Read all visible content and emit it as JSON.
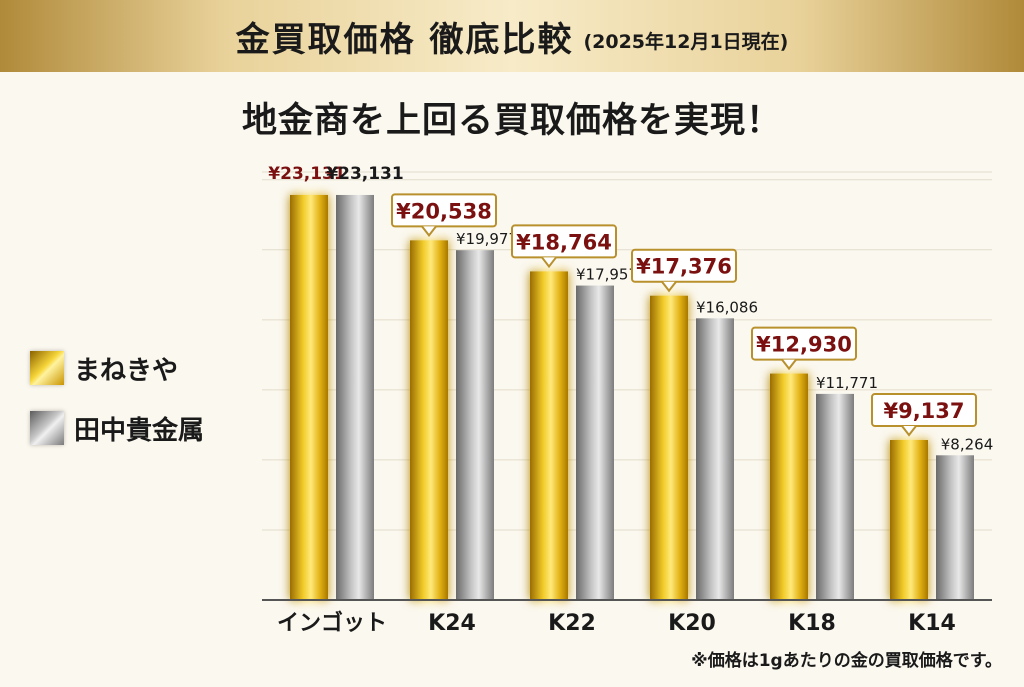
{
  "header": {
    "title": "金買取価格 徹底比較",
    "date_note": "(2025年12月1日現在)"
  },
  "subtitle": "地金商を上回る買取価格を実現！",
  "legend": [
    {
      "label": "まねきや",
      "style": "gold"
    },
    {
      "label": "田中貴金属",
      "style": "silver"
    }
  ],
  "footnote": "※価格は1gあたりの金の買取価格です。",
  "colors": {
    "accent_red": "#7a1010",
    "label_border": "#b8902c",
    "gold": "#e6b810",
    "silver": "#a8a8a8"
  },
  "chart_data": {
    "type": "bar",
    "categories": [
      "インゴット",
      "K24",
      "K22",
      "K20",
      "K18",
      "K14"
    ],
    "series": [
      {
        "name": "まねきや",
        "values": [
          23131,
          20538,
          18764,
          17376,
          12930,
          9137
        ],
        "labels": [
          "¥23,131",
          "¥20,538",
          "¥18,764",
          "¥17,376",
          "¥12,930",
          "¥9,137"
        ]
      },
      {
        "name": "田中貴金属",
        "values": [
          23131,
          19977,
          17957,
          16086,
          11771,
          8264
        ],
        "labels": [
          "¥23,131",
          "¥19,977",
          "¥17,957",
          "¥16,086",
          "¥11,771",
          "¥8,264"
        ]
      }
    ],
    "ylim": [
      0,
      27000
    ],
    "grid": true,
    "legend_position": "left"
  }
}
